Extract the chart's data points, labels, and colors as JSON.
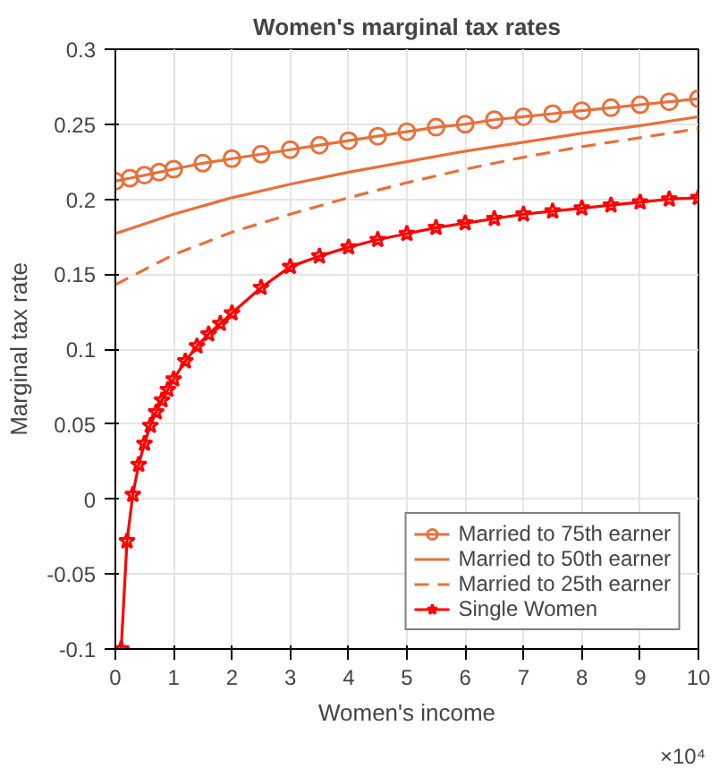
{
  "chart_data": {
    "type": "line",
    "title": "Women's marginal tax rates",
    "xlabel": "Women's income",
    "ylabel": "Marginal tax rate",
    "annotations": [
      "×10⁴"
    ],
    "xlim": [
      0,
      10
    ],
    "xticks": [
      0,
      1,
      2,
      3,
      4,
      5,
      6,
      7,
      8,
      9,
      10
    ],
    "ylim": [
      -0.1,
      0.3
    ],
    "yticks": [
      -0.1,
      -0.05,
      0,
      0.05,
      0.1,
      0.15,
      0.2,
      0.25,
      0.3
    ],
    "grid": true,
    "legend": "bottom right",
    "series": [
      {
        "name": "Married to 75th earner",
        "color": "#e8703a",
        "marker": "circle",
        "line_style": "solid",
        "x": [
          0,
          0.25,
          0.5,
          0.75,
          1,
          1.5,
          2,
          2.5,
          3,
          3.5,
          4,
          4.5,
          5,
          5.5,
          6,
          6.5,
          7,
          7.5,
          8,
          8.5,
          9,
          9.5,
          10
        ],
        "values": [
          0.212,
          0.214,
          0.216,
          0.218,
          0.22,
          0.224,
          0.227,
          0.23,
          0.233,
          0.236,
          0.239,
          0.242,
          0.245,
          0.248,
          0.25,
          0.253,
          0.255,
          0.257,
          0.259,
          0.261,
          0.263,
          0.265,
          0.267
        ]
      },
      {
        "name": "Married to 50th earner",
        "color": "#e8703a",
        "marker": "none",
        "line_style": "solid",
        "x": [
          0,
          1,
          2,
          3,
          4,
          5,
          6,
          7,
          8,
          9,
          10
        ],
        "values": [
          0.177,
          0.19,
          0.201,
          0.21,
          0.218,
          0.225,
          0.232,
          0.238,
          0.244,
          0.249,
          0.255
        ]
      },
      {
        "name": "Married to 25th earner",
        "color": "#e8703a",
        "marker": "none",
        "line_style": "dashed",
        "x": [
          0,
          1,
          2,
          3,
          4,
          5,
          6,
          7,
          8,
          9,
          10
        ],
        "values": [
          0.143,
          0.163,
          0.178,
          0.19,
          0.201,
          0.211,
          0.22,
          0.228,
          0.235,
          0.241,
          0.247
        ]
      },
      {
        "name": "Single Women",
        "color": "#ff0000",
        "marker": "star",
        "line_style": "solid",
        "x": [
          0.1,
          0.2,
          0.3,
          0.4,
          0.5,
          0.6,
          0.7,
          0.8,
          0.9,
          1,
          1.2,
          1.4,
          1.6,
          1.8,
          2,
          2.5,
          3,
          3.5,
          4,
          4.5,
          5,
          5.5,
          6,
          6.5,
          7,
          7.5,
          8,
          8.5,
          9,
          9.5,
          10
        ],
        "values": [
          -0.1,
          -0.028,
          0.003,
          0.023,
          0.037,
          0.049,
          0.058,
          0.066,
          0.073,
          0.08,
          0.092,
          0.102,
          0.11,
          0.117,
          0.124,
          0.141,
          0.155,
          0.162,
          0.168,
          0.173,
          0.177,
          0.181,
          0.184,
          0.187,
          0.19,
          0.192,
          0.194,
          0.196,
          0.198,
          0.2,
          0.201
        ]
      }
    ]
  }
}
